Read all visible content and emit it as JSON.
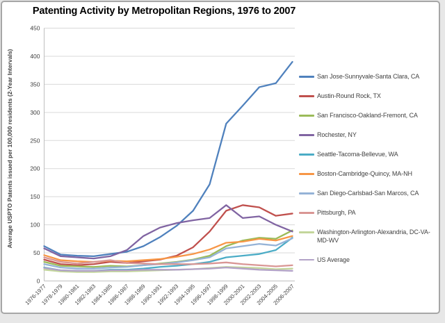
{
  "chart_data": {
    "type": "line",
    "title": "Patenting Activity by Metropolitan Regions, 1976 to 2007",
    "ylabel": "Average USPTO Patents issued per 100,000 residents  (2-Year Intervals)",
    "xlabel": "",
    "ylim": [
      0,
      450
    ],
    "ytick_interval": 50,
    "grid": "horizontal",
    "legend_position": "right",
    "categories": [
      "1976-1977",
      "1978-1979",
      "1980-1981",
      "1982-1983",
      "1984-1985",
      "1986-1987",
      "1988-1989",
      "1990-1991",
      "1992-1993",
      "1994-1995",
      "1996-1997",
      "1998-1999",
      "2000-2001",
      "2002-2003",
      "2004-2005",
      "2006-2007"
    ],
    "series": [
      {
        "name": "San Jose-Sunnyvale-Santa Clara, CA",
        "color": "#4F81BD",
        "values": [
          62,
          47,
          45,
          44,
          48,
          52,
          62,
          78,
          98,
          125,
          172,
          280,
          312,
          345,
          352,
          390
        ]
      },
      {
        "name": "Austin-Round Rock, TX",
        "color": "#C0504D",
        "values": [
          38,
          30,
          28,
          30,
          34,
          32,
          35,
          38,
          45,
          60,
          88,
          125,
          135,
          131,
          116,
          120
        ]
      },
      {
        "name": "San Francisco-Oakland-Fremont, CA",
        "color": "#9BBB59",
        "values": [
          34,
          27,
          26,
          25,
          27,
          26,
          28,
          31,
          34,
          38,
          45,
          62,
          72,
          77,
          75,
          90
        ]
      },
      {
        "name": "Rochester, NY",
        "color": "#8064A2",
        "values": [
          58,
          44,
          42,
          40,
          44,
          55,
          80,
          95,
          103,
          108,
          112,
          135,
          112,
          115,
          100,
          88
        ]
      },
      {
        "name": "Seattle-Tacoma-Bellevue, WA",
        "color": "#4BACC6",
        "values": [
          24,
          19,
          18,
          18,
          20,
          20,
          22,
          25,
          27,
          30,
          34,
          42,
          45,
          48,
          55,
          77
        ]
      },
      {
        "name": "Boston-Cambridge-Quincy, MA-NH",
        "color": "#F79646",
        "values": [
          46,
          37,
          35,
          34,
          36,
          35,
          37,
          39,
          43,
          48,
          56,
          68,
          70,
          75,
          72,
          80
        ]
      },
      {
        "name": "San Diego-Carlsbad-San Marcos, CA",
        "color": "#95B3D7",
        "values": [
          30,
          24,
          22,
          22,
          24,
          25,
          28,
          30,
          33,
          37,
          42,
          58,
          62,
          66,
          63,
          76
        ]
      },
      {
        "name": "Pittsburgh, PA",
        "color": "#D99694",
        "values": [
          42,
          34,
          31,
          34,
          37,
          32,
          31,
          30,
          30,
          30,
          31,
          33,
          30,
          28,
          26,
          28
        ]
      },
      {
        "name": "Washington-Arlington-Alexandria, DC-VA-MD-WV",
        "color": "#C3D69B",
        "values": [
          20,
          17,
          16,
          16,
          17,
          17,
          18,
          19,
          20,
          21,
          23,
          25,
          24,
          23,
          21,
          22
        ]
      },
      {
        "name": "US Average",
        "color": "#B2A2C7",
        "values": [
          23,
          19,
          18,
          18,
          19,
          19,
          20,
          20,
          20,
          21,
          22,
          24,
          22,
          20,
          19,
          18
        ]
      }
    ],
    "axis_colors": {
      "gridline": "#d9d9d9",
      "axis_line": "#bfbfbf",
      "tick_text": "#3f3f3f"
    }
  }
}
